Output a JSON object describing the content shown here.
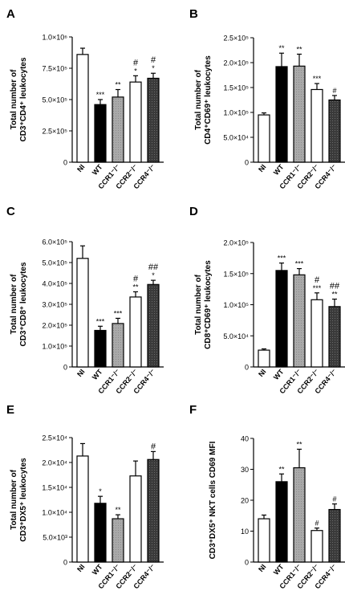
{
  "chart_data": [
    {
      "panel": "A",
      "type": "bar",
      "ylabel_lines": [
        "Total number of",
        "CD3⁺CD4⁺ leukocytes"
      ],
      "categories": [
        "NI",
        "WT",
        "CCR1⁻/⁻",
        "CCR2⁻/⁻",
        "CCR4⁻/⁻"
      ],
      "values": [
        860000,
        460000,
        520000,
        640000,
        670000
      ],
      "errors": [
        50000,
        40000,
        60000,
        50000,
        40000
      ],
      "annotations": [
        [
          "",
          ""
        ],
        [
          "***",
          ""
        ],
        [
          "**",
          ""
        ],
        [
          "*",
          "#"
        ],
        [
          "*",
          "#"
        ]
      ],
      "ylim": [
        0,
        1000000
      ],
      "yticks": [
        0,
        250000,
        500000,
        750000,
        1000000
      ],
      "ytick_labels": [
        "0",
        "2.5×10⁵",
        "5.0×10⁵",
        "7.5×10⁵",
        "1.0×10⁶"
      ]
    },
    {
      "panel": "B",
      "type": "bar",
      "ylabel_lines": [
        "Total number of",
        "CD4⁺CD69⁺ leukocytes"
      ],
      "categories": [
        "NI",
        "WT",
        "CCR1⁻/⁻",
        "CCR2⁻/⁻",
        "CCR4⁻/⁻"
      ],
      "values": [
        95000,
        192000,
        193000,
        146000,
        125000
      ],
      "errors": [
        4000,
        27000,
        24000,
        12000,
        9000
      ],
      "annotations": [
        [
          "",
          ""
        ],
        [
          "**",
          ""
        ],
        [
          "**",
          ""
        ],
        [
          "***",
          ""
        ],
        [
          "#",
          ""
        ]
      ],
      "ylim": [
        0,
        250000
      ],
      "yticks": [
        0,
        50000,
        100000,
        150000,
        200000,
        250000
      ],
      "ytick_labels": [
        "0",
        "5.0×10⁴",
        "1.0×10⁵",
        "1.5×10⁵",
        "2.0×10⁵",
        "2.5×10⁵"
      ]
    },
    {
      "panel": "C",
      "type": "bar",
      "ylabel_lines": [
        "Total number of",
        "CD3⁺CD8⁺ leukocytes"
      ],
      "categories": [
        "NI",
        "WT",
        "CCR1⁻/⁻",
        "CCR2⁻/⁻",
        "CCR4⁻/⁻"
      ],
      "values": [
        520000,
        175000,
        208000,
        335000,
        395000
      ],
      "errors": [
        60000,
        20000,
        25000,
        25000,
        20000
      ],
      "annotations": [
        [
          "",
          ""
        ],
        [
          "***",
          ""
        ],
        [
          "***",
          ""
        ],
        [
          "**",
          "#"
        ],
        [
          "*",
          "##"
        ]
      ],
      "ylim": [
        0,
        600000
      ],
      "yticks": [
        0,
        100000,
        200000,
        300000,
        400000,
        500000,
        600000
      ],
      "ytick_labels": [
        "0",
        "1.0×10⁵",
        "2.0×10⁵",
        "3.0×10⁵",
        "4.0×10⁵",
        "5.0×10⁵",
        "6.0×10⁵"
      ]
    },
    {
      "panel": "D",
      "type": "bar",
      "ylabel_lines": [
        "Total number of",
        "CD8⁺CD69⁺ leukocytes"
      ],
      "categories": [
        "NI",
        "WT",
        "CCR1⁻/⁻",
        "CCR2⁻/⁻",
        "CCR4⁻/⁻"
      ],
      "values": [
        27000,
        155000,
        148000,
        108000,
        97000
      ],
      "errors": [
        2000,
        12000,
        10000,
        11000,
        12000
      ],
      "annotations": [
        [
          "",
          ""
        ],
        [
          "***",
          ""
        ],
        [
          "***",
          ""
        ],
        [
          "***",
          "#"
        ],
        [
          "**",
          "##"
        ]
      ],
      "ylim": [
        0,
        200000
      ],
      "yticks": [
        0,
        50000,
        100000,
        150000,
        200000
      ],
      "ytick_labels": [
        "0",
        "5.0×10⁴",
        "1.0×10⁵",
        "1.5×10⁵",
        "2.0×10⁵"
      ]
    },
    {
      "panel": "E",
      "type": "bar",
      "ylabel_lines": [
        "Total number of",
        "CD3⁺DX5⁺ leukocytes"
      ],
      "categories": [
        "NI",
        "WT",
        "CCR1⁻/⁻",
        "CCR2⁻/⁻",
        "CCR4⁻/⁻"
      ],
      "values": [
        21300,
        11800,
        8700,
        17300,
        20600
      ],
      "errors": [
        2500,
        1400,
        800,
        3000,
        1600
      ],
      "annotations": [
        [
          "",
          ""
        ],
        [
          "*",
          ""
        ],
        [
          "**",
          ""
        ],
        [
          "",
          ""
        ],
        [
          "",
          "#"
        ]
      ],
      "ylim": [
        0,
        25000
      ],
      "yticks": [
        0,
        5000,
        10000,
        15000,
        20000,
        25000
      ],
      "ytick_labels": [
        "0",
        "5.0×10³",
        "1.0×10⁴",
        "1.5×10⁴",
        "2.0×10⁴",
        "2.5×10⁴"
      ]
    },
    {
      "panel": "F",
      "type": "bar",
      "ylabel_lines": [
        "CD3⁺DX5⁺ NKT cells CD69 MFI"
      ],
      "categories": [
        "NI",
        "WT",
        "CCR1⁻/⁻",
        "CCR2⁻/⁻",
        "CCR4⁻/⁻"
      ],
      "values": [
        14,
        26,
        30.5,
        10.2,
        17
      ],
      "errors": [
        1.2,
        2.5,
        6,
        0.8,
        1.8
      ],
      "annotations": [
        [
          "",
          ""
        ],
        [
          "**",
          ""
        ],
        [
          "**",
          ""
        ],
        [
          "#",
          ""
        ],
        [
          "#",
          ""
        ]
      ],
      "ylim": [
        0,
        40
      ],
      "yticks": [
        0,
        10,
        20,
        30,
        40
      ],
      "ytick_labels": [
        "0",
        "10",
        "20",
        "30",
        "40"
      ]
    }
  ],
  "colors": {
    "NI": "#ffffff",
    "WT": "#000000",
    "CCR1": "#a9a9a9",
    "CCR2": "#ffffff",
    "CCR4": "#444444",
    "axis": "#000000"
  }
}
